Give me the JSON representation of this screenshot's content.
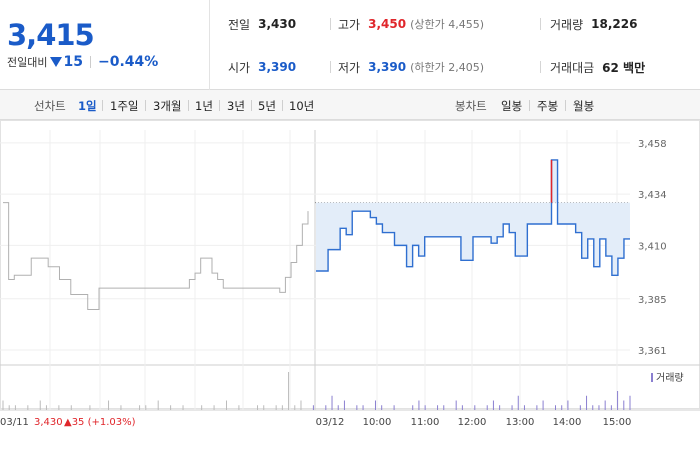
{
  "summary": {
    "price": "3,415",
    "change_label": "전일대비",
    "change_value": "15",
    "change_pct": "−0.44%"
  },
  "stats": {
    "prev_close": {
      "label": "전일",
      "value": "3,430"
    },
    "high": {
      "label": "고가",
      "value": "3,450",
      "sub": "(상한가 4,455)"
    },
    "volume": {
      "label": "거래량",
      "value": "18,226"
    },
    "open": {
      "label": "시가",
      "value": "3,390"
    },
    "low": {
      "label": "저가",
      "value": "3,390",
      "sub": "(하한가 2,405)"
    },
    "amount": {
      "label": "거래대금",
      "value": "62 백만"
    }
  },
  "line_chart_tabs": {
    "title": "선차트",
    "options": [
      "1일",
      "1주일",
      "3개월",
      "1년",
      "3년",
      "5년",
      "10년"
    ],
    "active": "1일"
  },
  "candle_chart_tabs": {
    "title": "봉차트",
    "options": [
      "일봉",
      "주봉",
      "월봉"
    ]
  },
  "colors": {
    "blue": "#1a5bc8",
    "red": "#e0262b",
    "line_today": "#2f6fd0",
    "line_prev": "#b0b0b0",
    "fill_today": "#e3edf9"
  },
  "chart_data": {
    "type": "line",
    "ylim": [
      3354,
      3464
    ],
    "yticks": [
      "3,458",
      "3,434",
      "3,410",
      "3,385",
      "3,361"
    ],
    "ytick_values": [
      3458,
      3434,
      3410,
      3385,
      3361
    ],
    "xticks": [
      "03/12",
      "10:00",
      "11:00",
      "12:00",
      "13:00",
      "14:00",
      "15:00"
    ],
    "prev_day_label": "03/11",
    "prev_day_close": "3,430",
    "prev_day_change": "▲35 (+1.03%)",
    "volume_legend": "거래량",
    "prev_close_value": 3430,
    "prev_series": [
      3430,
      3394,
      3396,
      3396,
      3396,
      3404,
      3404,
      3404,
      3400,
      3400,
      3394,
      3394,
      3387,
      3387,
      3387,
      3380,
      3380,
      3390,
      3390,
      3390,
      3390,
      3390,
      3390,
      3390,
      3390,
      3390,
      3390,
      3390,
      3390,
      3390,
      3390,
      3390,
      3390,
      3394,
      3397,
      3404,
      3404,
      3397,
      3394,
      3390,
      3390,
      3390,
      3390,
      3390,
      3390,
      3390,
      3390,
      3390,
      3390,
      3388,
      3395,
      3402,
      3410,
      3420,
      3426
    ],
    "today_series": [
      3398,
      3398,
      3408,
      3408,
      3418,
      3415,
      3426,
      3426,
      3426,
      3423,
      3420,
      3416,
      3416,
      3410,
      3410,
      3400,
      3410,
      3405,
      3414,
      3414,
      3414,
      3414,
      3414,
      3414,
      3403,
      3403,
      3414,
      3414,
      3414,
      3411,
      3414,
      3420,
      3416,
      3405,
      3405,
      3420,
      3420,
      3420,
      3420,
      3450,
      3420,
      3420,
      3420,
      3416,
      3404,
      3413,
      3400,
      3413,
      3405,
      3396,
      3404,
      3413,
      3413
    ],
    "volume": [
      2,
      1,
      1,
      0,
      1,
      0,
      2,
      1,
      0,
      1,
      0,
      1,
      0,
      0,
      1,
      0,
      0,
      2,
      0,
      1,
      0,
      0,
      1,
      1,
      0,
      2,
      0,
      1,
      0,
      1,
      0,
      0,
      1,
      0,
      1,
      0,
      2,
      0,
      1,
      0,
      0,
      1,
      1,
      0,
      1,
      1,
      8,
      1,
      2,
      0,
      1,
      0,
      1,
      3,
      1,
      2,
      0,
      1,
      1,
      0,
      2,
      1,
      0,
      1,
      0,
      0,
      1,
      2,
      1,
      0,
      1,
      1,
      0,
      2,
      1,
      0,
      1,
      0,
      1,
      2,
      1,
      0,
      1,
      3,
      1,
      0,
      1,
      2,
      0,
      1,
      1,
      2,
      0,
      1,
      3,
      1,
      1,
      2,
      1,
      4,
      2,
      3
    ]
  }
}
